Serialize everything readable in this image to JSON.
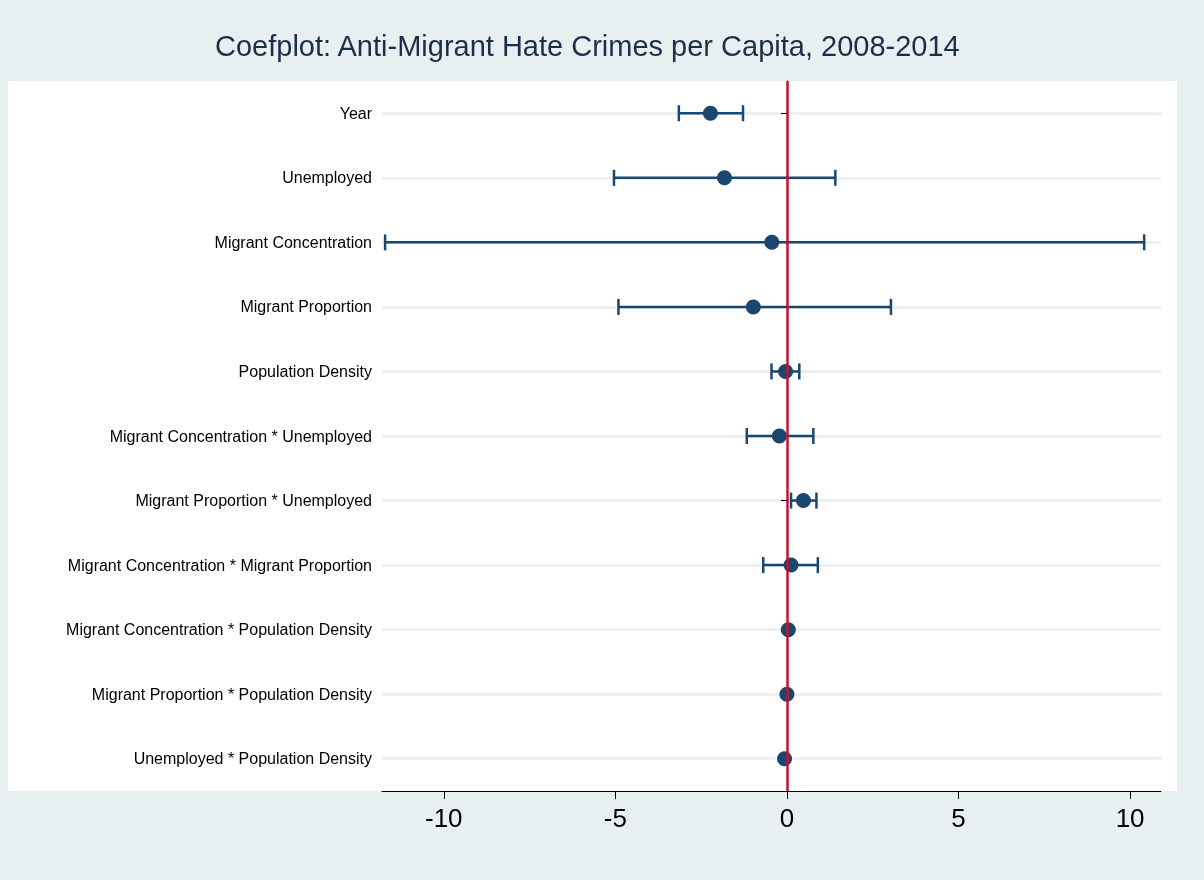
{
  "chart_data": {
    "type": "scatter",
    "title": "Coefplot: Anti-Migrant Hate Crimes per Capita, 2008-2014",
    "orientation": "horizontal",
    "categories": [
      "Year",
      "Unemployed",
      "Migrant Concentration",
      "Migrant Proportion",
      "Population Density",
      "Migrant Concentration * Unemployed",
      "Migrant Proportion * Unemployed",
      "Migrant Concentration * Migrant Proportion",
      "Migrant Concentration * Population Density",
      "Migrant Proportion * Population Density",
      "Unemployed * Population Density"
    ],
    "series": [
      {
        "color": "#1a476f",
        "values": [
          -2.23,
          -1.82,
          -0.44,
          -0.98,
          -0.04,
          -0.22,
          0.48,
          0.12,
          0.04,
          0,
          -0.07
        ],
        "errors": [
          [
            -3.15,
            -1.28
          ],
          [
            -5.04,
            1.41
          ],
          [
            -11.71,
            10.41
          ],
          [
            -4.91,
            3.03
          ],
          [
            -0.45,
            0.36
          ],
          [
            -1.17,
            0.77
          ],
          [
            0.12,
            0.86
          ],
          [
            -0.69,
            0.9
          ],
          null,
          null,
          null
        ]
      }
    ],
    "xlim": [
      -11.8,
      10.9
    ],
    "xticks": [
      -10,
      -5,
      0,
      5,
      10
    ],
    "ref_lines": [
      {
        "axis": "x",
        "value": 0,
        "color": "#c8102e"
      }
    ],
    "grid": "y",
    "marker": "circle"
  }
}
